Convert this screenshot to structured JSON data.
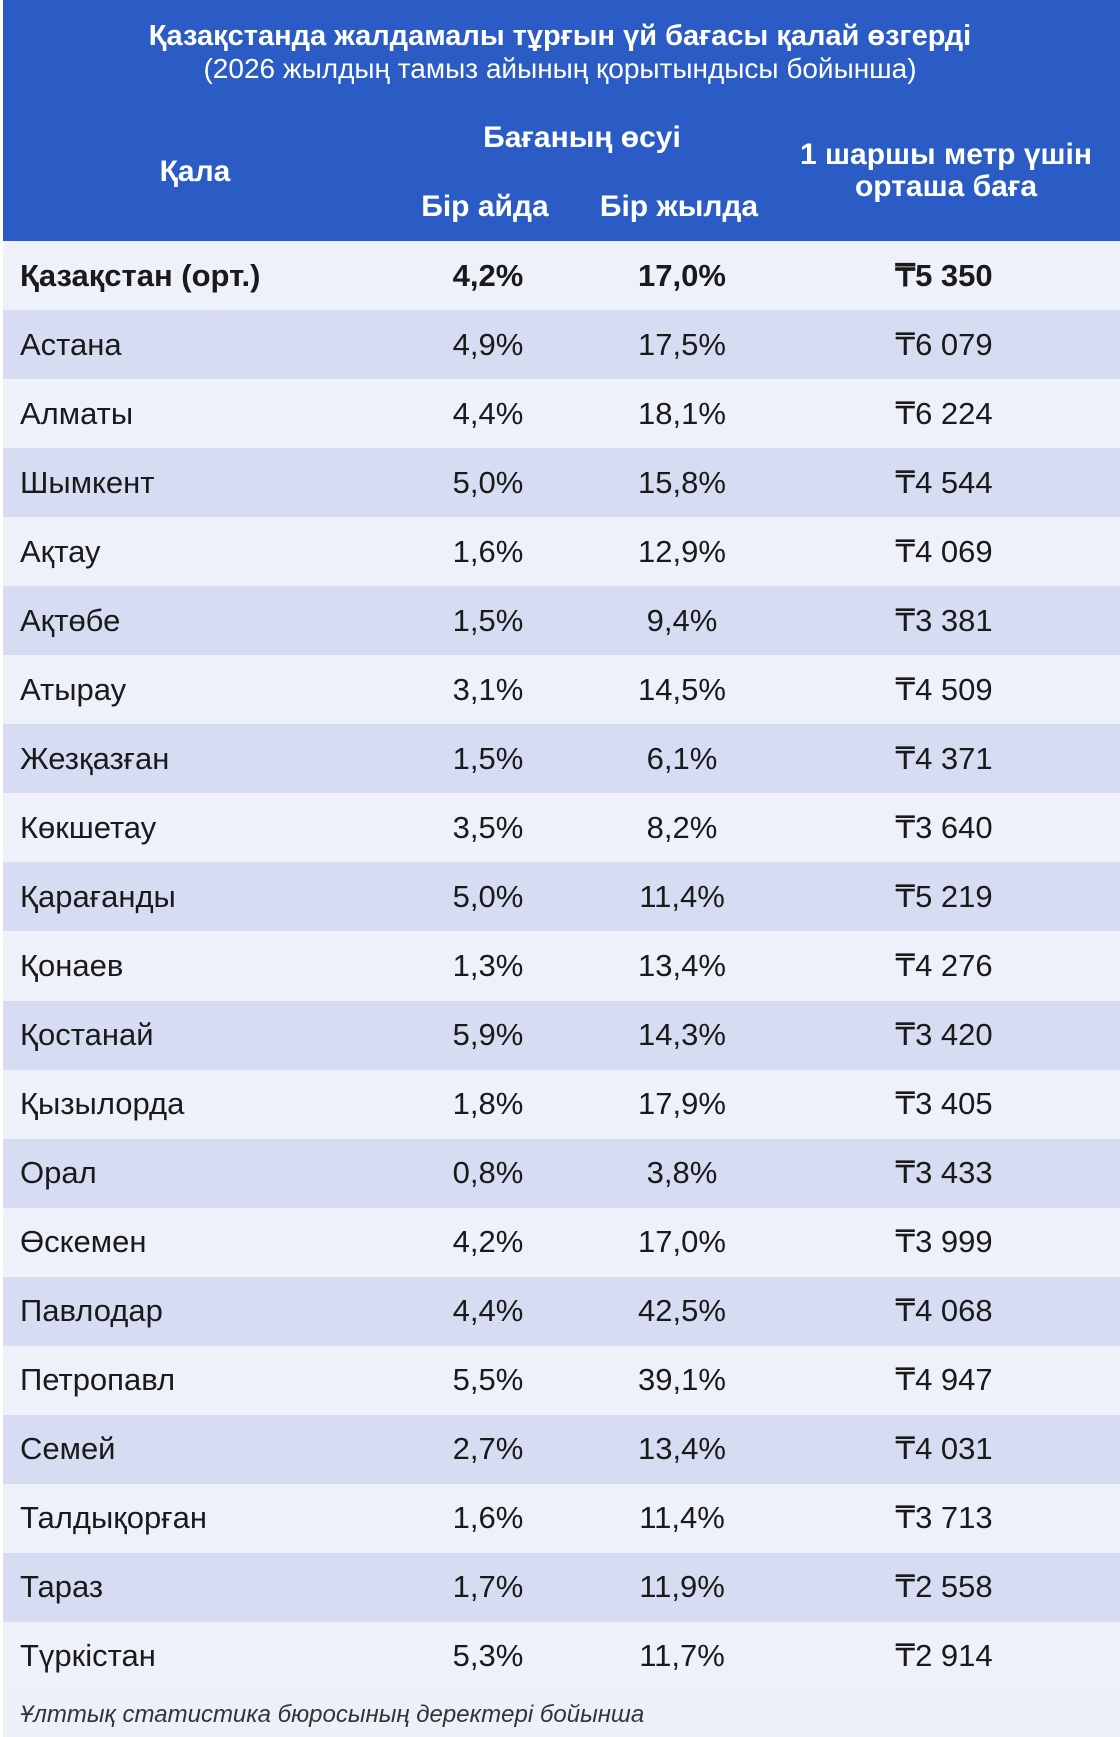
{
  "header": {
    "title": "Қазақстанда жалдамалы тұрғын үй бағасы қалай өзгерді",
    "subtitle": "(2026 жылдың тамыз айының қорытындысы бойынша)"
  },
  "columns": {
    "city": "Қала",
    "growth": "Бағаның өсуі",
    "month": "Бір айда",
    "year": "Бір жылда",
    "price": [
      "1 шаршы метр үшін",
      "орташа баға"
    ]
  },
  "table": {
    "rows": [
      [
        "Қазақстан (орт.)",
        "4,2%",
        "17,0%",
        "₸5 350"
      ],
      [
        "Астана",
        "4,9%",
        "17,5%",
        "₸6 079"
      ],
      [
        "Алматы",
        "4,4%",
        "18,1%",
        "₸6 224"
      ],
      [
        "Шымкент",
        "5,0%",
        "15,8%",
        "₸4 544"
      ],
      [
        "Ақтау",
        "1,6%",
        "12,9%",
        "₸4 069"
      ],
      [
        "Ақтөбе",
        "1,5%",
        "9,4%",
        "₸3 381"
      ],
      [
        "Атырау",
        "3,1%",
        "14,5%",
        "₸4 509"
      ],
      [
        "Жезқазған",
        "1,5%",
        "6,1%",
        "₸4 371"
      ],
      [
        "Көкшетау",
        "3,5%",
        "8,2%",
        "₸3 640"
      ],
      [
        "Қарағанды",
        "5,0%",
        "11,4%",
        "₸5 219"
      ],
      [
        "Қонаев",
        "1,3%",
        "13,4%",
        "₸4 276"
      ],
      [
        "Қостанай",
        "5,9%",
        "14,3%",
        "₸3 420"
      ],
      [
        "Қызылорда",
        "1,8%",
        "17,9%",
        "₸3 405"
      ],
      [
        "Орал",
        "0,8%",
        "3,8%",
        "₸3 433"
      ],
      [
        "Өскемен",
        "4,2%",
        "17,0%",
        "₸3 999"
      ],
      [
        "Павлодар",
        "4,4%",
        "42,5%",
        "₸4 068"
      ],
      [
        "Петропавл",
        "5,5%",
        "39,1%",
        "₸4 947"
      ],
      [
        "Семей",
        "2,7%",
        "13,4%",
        "₸4 031"
      ],
      [
        "Талдықорған",
        "1,6%",
        "11,4%",
        "₸3 713"
      ],
      [
        "Тараз",
        "1,7%",
        "11,9%",
        "₸2 558"
      ],
      [
        "Түркістан",
        "5,3%",
        "11,7%",
        "₸2 914"
      ]
    ]
  },
  "footer": {
    "source": "Ұлттық статистика бюросының деректері бойынша"
  }
}
